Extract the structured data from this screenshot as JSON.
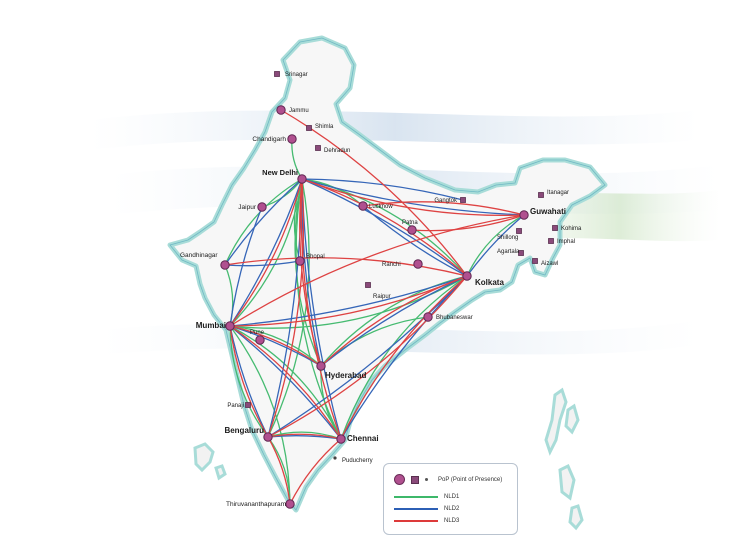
{
  "colors": {
    "nld1": "#3db86a",
    "nld2": "#2c5fb5",
    "nld3": "#dd3a3a",
    "pop_fill": "#b0508f",
    "land": "#f7f7f7",
    "coast": "#a8dcd8"
  },
  "legend": {
    "pop_label": "PoP (Point of Presence)",
    "nld1_label": "NLD1",
    "nld2_label": "NLD2",
    "nld3_label": "NLD3"
  },
  "cities": [
    {
      "id": "srinagar",
      "name": "Srinagar",
      "kind": "square"
    },
    {
      "id": "jammu",
      "name": "Jammu",
      "kind": "circle"
    },
    {
      "id": "shimla",
      "name": "Shimla",
      "kind": "square"
    },
    {
      "id": "chandigarh",
      "name": "Chandigarh",
      "kind": "circle"
    },
    {
      "id": "dehradun",
      "name": "Dehradun",
      "kind": "square"
    },
    {
      "id": "delhi",
      "name": "New Delhi",
      "kind": "circle"
    },
    {
      "id": "jaipur",
      "name": "Jaipur",
      "kind": "circle"
    },
    {
      "id": "lucknow",
      "name": "Lucknow",
      "kind": "circle"
    },
    {
      "id": "patna",
      "name": "Patna",
      "kind": "circle"
    },
    {
      "id": "gangtok",
      "name": "Gangtok",
      "kind": "square"
    },
    {
      "id": "itanagar",
      "name": "Itanagar",
      "kind": "square"
    },
    {
      "id": "guwahati",
      "name": "Guwahati",
      "kind": "circle"
    },
    {
      "id": "shillong",
      "name": "Shillong",
      "kind": "square"
    },
    {
      "id": "kohima",
      "name": "Kohima",
      "kind": "square"
    },
    {
      "id": "imphal",
      "name": "Imphal",
      "kind": "square"
    },
    {
      "id": "agartala",
      "name": "Agartala",
      "kind": "square"
    },
    {
      "id": "aizawl",
      "name": "Aizawl",
      "kind": "square"
    },
    {
      "id": "gandhinagar",
      "name": "Gandhinagar",
      "kind": "circle"
    },
    {
      "id": "bhopal",
      "name": "Bhopal",
      "kind": "circle"
    },
    {
      "id": "ranchi",
      "name": "Ranchi",
      "kind": "circle"
    },
    {
      "id": "kolkata",
      "name": "Kolkata",
      "kind": "circle"
    },
    {
      "id": "raipur",
      "name": "Raipur",
      "kind": "square"
    },
    {
      "id": "bhubaneswar",
      "name": "Bhubaneswar",
      "kind": "circle"
    },
    {
      "id": "mumbai",
      "name": "Mumbai",
      "kind": "circle"
    },
    {
      "id": "pune",
      "name": "Pune",
      "kind": "circle"
    },
    {
      "id": "hyderabad",
      "name": "Hyderabad",
      "kind": "circle"
    },
    {
      "id": "panaji",
      "name": "Panaji",
      "kind": "square"
    },
    {
      "id": "bengaluru",
      "name": "Bengaluru",
      "kind": "circle"
    },
    {
      "id": "chennai",
      "name": "Chennai",
      "kind": "circle"
    },
    {
      "id": "puducherry",
      "name": "Puducherry",
      "kind": "dot"
    },
    {
      "id": "thiruvananthapuram",
      "name": "Thiruvananthapuram",
      "kind": "circle"
    }
  ],
  "routes": {
    "nld1": [
      [
        "delhi",
        "mumbai"
      ],
      [
        "delhi",
        "bengaluru"
      ],
      [
        "delhi",
        "chennai"
      ],
      [
        "delhi",
        "hyderabad"
      ],
      [
        "delhi",
        "gandhinagar"
      ],
      [
        "delhi",
        "jaipur"
      ],
      [
        "delhi",
        "kolkata"
      ],
      [
        "delhi",
        "bhopal"
      ],
      [
        "delhi",
        "chandigarh"
      ],
      [
        "delhi",
        "lucknow"
      ],
      [
        "mumbai",
        "chennai"
      ],
      [
        "mumbai",
        "hyderabad"
      ],
      [
        "mumbai",
        "bengaluru"
      ],
      [
        "mumbai",
        "thiruvananthapuram"
      ],
      [
        "mumbai",
        "kolkata"
      ],
      [
        "bengaluru",
        "chennai"
      ],
      [
        "bengaluru",
        "thiruvananthapuram"
      ],
      [
        "hyderabad",
        "kolkata"
      ],
      [
        "chennai",
        "kolkata"
      ],
      [
        "kolkata",
        "guwahati"
      ],
      [
        "gandhinagar",
        "mumbai"
      ],
      [
        "hyderabad",
        "chennai"
      ],
      [
        "bhubaneswar",
        "hyderabad"
      ]
    ],
    "nld2": [
      [
        "delhi",
        "mumbai"
      ],
      [
        "delhi",
        "bengaluru"
      ],
      [
        "delhi",
        "chennai"
      ],
      [
        "delhi",
        "hyderabad"
      ],
      [
        "delhi",
        "kolkata"
      ],
      [
        "delhi",
        "gandhinagar"
      ],
      [
        "delhi",
        "guwahati"
      ],
      [
        "delhi",
        "gangtok"
      ],
      [
        "mumbai",
        "kolkata"
      ],
      [
        "mumbai",
        "chennai"
      ],
      [
        "mumbai",
        "bengaluru"
      ],
      [
        "mumbai",
        "hyderabad"
      ],
      [
        "chennai",
        "kolkata"
      ],
      [
        "hyderabad",
        "kolkata"
      ],
      [
        "bengaluru",
        "kolkata"
      ],
      [
        "kolkata",
        "guwahati"
      ],
      [
        "bengaluru",
        "chennai"
      ],
      [
        "gandhinagar",
        "bhopal"
      ],
      [
        "jaipur",
        "mumbai"
      ],
      [
        "lucknow",
        "kolkata"
      ]
    ],
    "nld3": [
      [
        "delhi",
        "mumbai"
      ],
      [
        "delhi",
        "chennai"
      ],
      [
        "delhi",
        "kolkata"
      ],
      [
        "delhi",
        "hyderabad"
      ],
      [
        "delhi",
        "bengaluru"
      ],
      [
        "delhi",
        "guwahati"
      ],
      [
        "mumbai",
        "kolkata"
      ],
      [
        "mumbai",
        "chennai"
      ],
      [
        "mumbai",
        "bengaluru"
      ],
      [
        "mumbai",
        "hyderabad"
      ],
      [
        "mumbai",
        "guwahati"
      ],
      [
        "chennai",
        "kolkata"
      ],
      [
        "bengaluru",
        "kolkata"
      ],
      [
        "hyderabad",
        "kolkata"
      ],
      [
        "gandhinagar",
        "kolkata"
      ],
      [
        "bengaluru",
        "thiruvananthapuram"
      ],
      [
        "chennai",
        "thiruvananthapuram"
      ],
      [
        "jammu",
        "kolkata"
      ],
      [
        "bengaluru",
        "chennai"
      ],
      [
        "lucknow",
        "guwahati"
      ],
      [
        "patna",
        "guwahati"
      ]
    ]
  }
}
